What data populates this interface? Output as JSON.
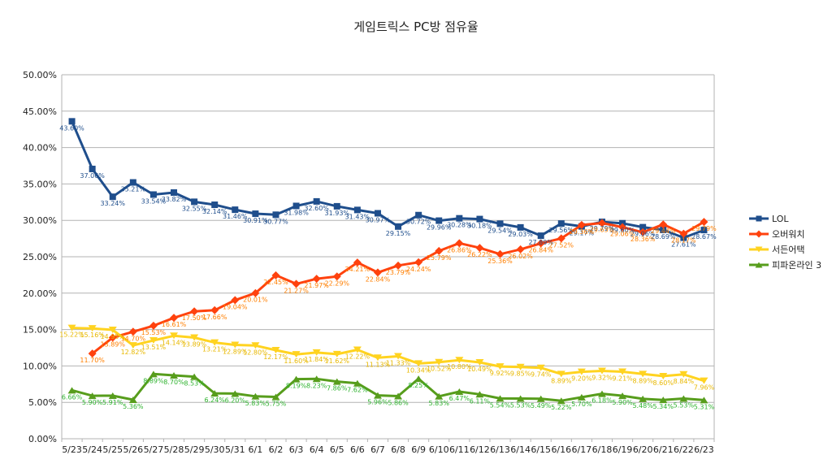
{
  "chart_data": {
    "type": "line",
    "title": "게임트릭스  PC방 점유율",
    "xlabel": "",
    "ylabel": "",
    "ylim": [
      0,
      50
    ],
    "y_ticks": [
      "0.00%",
      "5.00%",
      "10.00%",
      "15.00%",
      "20.00%",
      "25.00%",
      "30.00%",
      "35.00%",
      "40.00%",
      "45.00%",
      "50.00%"
    ],
    "grid": true,
    "legend_position": "right",
    "categories": [
      "5/23",
      "5/24",
      "5/25",
      "5/26",
      "5/27",
      "5/28",
      "5/29",
      "5/30",
      "5/31",
      "6/1",
      "6/2",
      "6/3",
      "6/4",
      "6/5",
      "6/6",
      "6/7",
      "6/8",
      "6/9",
      "6/10",
      "6/11",
      "6/12",
      "6/13",
      "6/14",
      "6/15",
      "6/16",
      "6/17",
      "6/18",
      "6/19",
      "6/20",
      "6/21",
      "6/22",
      "6/23"
    ],
    "series": [
      {
        "name": "LOL",
        "color": "#1f4e8c",
        "marker": "square",
        "values": [
          43.6,
          37.06,
          33.24,
          35.21,
          33.54,
          33.82,
          32.55,
          32.14,
          31.46,
          30.91,
          30.77,
          31.98,
          32.6,
          31.93,
          31.43,
          30.97,
          29.15,
          30.72,
          29.96,
          30.28,
          30.18,
          29.54,
          29.03,
          27.89,
          29.56,
          29.17,
          29.79,
          29.6,
          29.06,
          28.69,
          27.61,
          28.67
        ],
        "labels": [
          "43.60%",
          "37.06%",
          "33.24%",
          "35.21%",
          "33.54%",
          "33.82%",
          "32.55%",
          "32.14%",
          "31.46%",
          "30.91%",
          "30.77%",
          "31.98%",
          "32.60%",
          "31.93%",
          "31.43%",
          "30.97%",
          "29.15%",
          "30.72%",
          "29.96%",
          "30.28%",
          "30.18%",
          "29.54%",
          "29.03%",
          "27.89%",
          "29.56%",
          "29.17%",
          "29.79%",
          "29.60%",
          "29.06%",
          "28.69%",
          "27.61%",
          "28.67%"
        ]
      },
      {
        "name": "오버워치",
        "color": "#ff420e",
        "marker": "diamond",
        "values": [
          null,
          11.7,
          13.89,
          14.7,
          15.53,
          16.61,
          17.5,
          17.66,
          19.04,
          20.01,
          22.45,
          21.27,
          21.97,
          22.29,
          24.21,
          22.84,
          23.79,
          24.24,
          25.79,
          26.86,
          26.22,
          25.36,
          26.02,
          26.84,
          27.52,
          29.36,
          29.63,
          29.06,
          28.36,
          29.44,
          28.17,
          29.79
        ],
        "labels": [
          "",
          "11.70%",
          "13.89%",
          "14.70%",
          "15.53%",
          "16.61%",
          "17.50%",
          "17.66%",
          "19.04%",
          "20.01%",
          "22.45%",
          "21.27%",
          "21.97%",
          "22.29%",
          "24.21%",
          "22.84%",
          "23.79%",
          "24.24%",
          "25.79%",
          "26.86%",
          "26.22%",
          "25.36%",
          "26.02%",
          "26.84%",
          "27.52%",
          "29.36%",
          "29.63%",
          "29.06%",
          "28.36%",
          "29.44%",
          "28.17%",
          "29.79%"
        ]
      },
      {
        "name": "서든어택",
        "color": "#ffd320",
        "marker": "triangle-down",
        "values": [
          15.22,
          15.16,
          14.95,
          12.82,
          13.51,
          14.14,
          13.89,
          13.21,
          12.89,
          12.8,
          12.17,
          11.6,
          11.84,
          11.62,
          12.22,
          11.13,
          11.33,
          10.34,
          10.52,
          10.8,
          10.49,
          9.92,
          9.85,
          9.74,
          8.89,
          9.2,
          9.32,
          9.21,
          8.89,
          8.6,
          8.84,
          7.96
        ],
        "labels": [
          "15.22%",
          "15.16%",
          "14.95%",
          "12.82%",
          "13.51%",
          "14.14%",
          "13.89%",
          "13.21%",
          "12.89%",
          "12.80%",
          "12.17%",
          "11.60%",
          "11.84%",
          "11.62%",
          "12.22%",
          "11.13%",
          "11.33%",
          "10.34%",
          "10.52%",
          "10.80%",
          "10.49%",
          "9.92%",
          "9.85%",
          "9.74%",
          "8.89%",
          "9.20%",
          "9.32%",
          "9.21%",
          "8.89%",
          "8.60%",
          "8.84%",
          "7.96%"
        ]
      },
      {
        "name": "피파온라인 3",
        "color": "#579d1c",
        "marker": "triangle-up",
        "values": [
          6.66,
          5.9,
          5.91,
          5.36,
          8.89,
          8.7,
          8.53,
          6.24,
          6.2,
          5.83,
          5.75,
          8.19,
          8.23,
          7.86,
          7.62,
          5.96,
          5.86,
          8.25,
          5.83,
          6.47,
          6.11,
          5.54,
          5.53,
          5.49,
          5.22,
          5.7,
          6.18,
          5.9,
          5.48,
          5.34,
          5.53,
          5.31
        ],
        "labels": [
          "6.66%",
          "5.90%",
          "5.91%",
          "5.36%",
          "8.89%",
          "8.70%",
          "8.53%",
          "6.24%",
          "6.20%",
          "5.83%",
          "5.75%",
          "8.19%",
          "8.23%",
          "7.86%",
          "7.62%",
          "5.96%",
          "5.86%",
          "8.25%",
          "5.83%",
          "6.47%",
          "6.11%",
          "5.54%",
          "5.53%",
          "5.49%",
          "5.22%",
          "5.70%",
          "6.18%",
          "5.90%",
          "5.48%",
          "5.34%",
          "5.53%",
          "5.31%"
        ]
      }
    ]
  }
}
